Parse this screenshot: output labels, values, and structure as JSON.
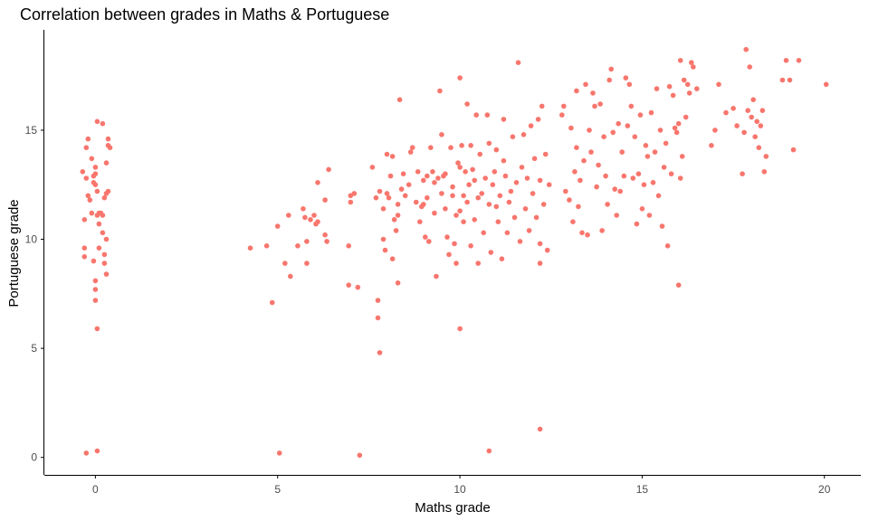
{
  "chart_data": {
    "type": "scatter",
    "title": "Correlation between grades in Maths & Portuguese",
    "xlabel": "Maths grade",
    "ylabel": "Portuguese grade",
    "xlim": [
      -1.4,
      21.0
    ],
    "ylim": [
      -0.8,
      19.6
    ],
    "xticks": [
      0,
      5,
      10,
      15,
      20
    ],
    "yticks": [
      0,
      5,
      10,
      15
    ],
    "grid": false,
    "legend": "none",
    "point_color": "#f8766d",
    "points": [
      [
        -0.3,
        9.2
      ],
      [
        -0.3,
        9.6
      ],
      [
        -0.3,
        10.9
      ],
      [
        -0.35,
        13.1
      ],
      [
        -0.25,
        12.8
      ],
      [
        -0.2,
        12.0
      ],
      [
        -0.25,
        14.2
      ],
      [
        -0.2,
        14.6
      ],
      [
        -0.15,
        11.8
      ],
      [
        -0.1,
        13.7
      ],
      [
        -0.05,
        12.6
      ],
      [
        -0.05,
        12.9
      ],
      [
        0.0,
        13.0
      ],
      [
        0.0,
        13.3
      ],
      [
        0.05,
        12.2
      ],
      [
        0.0,
        12.5
      ],
      [
        -0.1,
        11.2
      ],
      [
        -0.05,
        9.0
      ],
      [
        0.1,
        9.6
      ],
      [
        0.0,
        8.1
      ],
      [
        0.0,
        7.7
      ],
      [
        0.0,
        7.2
      ],
      [
        0.05,
        5.9
      ],
      [
        0.05,
        11.1
      ],
      [
        0.1,
        11.2
      ],
      [
        0.15,
        11.2
      ],
      [
        0.1,
        10.7
      ],
      [
        0.2,
        10.3
      ],
      [
        0.2,
        11.1
      ],
      [
        0.25,
        11.9
      ],
      [
        0.3,
        12.1
      ],
      [
        0.35,
        12.2
      ],
      [
        0.3,
        13.5
      ],
      [
        0.35,
        14.3
      ],
      [
        0.4,
        14.2
      ],
      [
        0.35,
        14.6
      ],
      [
        0.3,
        10.0
      ],
      [
        0.25,
        9.3
      ],
      [
        0.3,
        8.4
      ],
      [
        0.25,
        8.9
      ],
      [
        0.05,
        15.4
      ],
      [
        0.2,
        15.3
      ],
      [
        -0.25,
        0.2
      ],
      [
        0.05,
        0.3
      ],
      [
        4.25,
        9.6
      ],
      [
        4.7,
        9.7
      ],
      [
        4.85,
        7.1
      ],
      [
        5.0,
        10.6
      ],
      [
        5.2,
        8.9
      ],
      [
        5.35,
        8.3
      ],
      [
        5.3,
        11.1
      ],
      [
        5.55,
        9.7
      ],
      [
        5.7,
        11.4
      ],
      [
        5.75,
        11.0
      ],
      [
        5.8,
        9.9
      ],
      [
        5.8,
        8.9
      ],
      [
        5.9,
        10.9
      ],
      [
        6.0,
        11.1
      ],
      [
        6.05,
        10.7
      ],
      [
        6.1,
        10.8
      ],
      [
        6.1,
        12.6
      ],
      [
        6.3,
        10.2
      ],
      [
        6.3,
        11.8
      ],
      [
        6.35,
        9.9
      ],
      [
        6.4,
        13.2
      ],
      [
        5.05,
        0.2
      ],
      [
        6.95,
        9.7
      ],
      [
        6.95,
        7.9
      ],
      [
        7.0,
        11.7
      ],
      [
        7.0,
        12.0
      ],
      [
        7.1,
        12.1
      ],
      [
        7.2,
        7.8
      ],
      [
        7.25,
        0.1
      ],
      [
        7.6,
        13.3
      ],
      [
        7.7,
        11.9
      ],
      [
        7.75,
        7.2
      ],
      [
        7.75,
        6.4
      ],
      [
        7.8,
        4.8
      ],
      [
        7.8,
        12.2
      ],
      [
        7.9,
        10.0
      ],
      [
        7.9,
        11.4
      ],
      [
        7.95,
        9.5
      ],
      [
        8.0,
        12.1
      ],
      [
        8.0,
        13.9
      ],
      [
        8.05,
        11.9
      ],
      [
        8.1,
        12.9
      ],
      [
        8.15,
        13.8
      ],
      [
        8.15,
        9.1
      ],
      [
        8.2,
        10.9
      ],
      [
        8.25,
        10.4
      ],
      [
        8.3,
        8.0
      ],
      [
        8.3,
        11.1
      ],
      [
        8.3,
        11.6
      ],
      [
        8.35,
        16.4
      ],
      [
        8.4,
        12.3
      ],
      [
        8.45,
        13.0
      ],
      [
        8.5,
        12.0
      ],
      [
        8.6,
        12.5
      ],
      [
        8.65,
        14.0
      ],
      [
        8.7,
        14.2
      ],
      [
        8.8,
        11.7
      ],
      [
        8.85,
        13.1
      ],
      [
        8.9,
        10.8
      ],
      [
        8.95,
        11.5
      ],
      [
        9.0,
        11.6
      ],
      [
        9.0,
        12.7
      ],
      [
        9.05,
        10.1
      ],
      [
        9.1,
        11.9
      ],
      [
        9.1,
        12.9
      ],
      [
        9.15,
        9.9
      ],
      [
        9.2,
        14.2
      ],
      [
        9.25,
        13.1
      ],
      [
        9.3,
        12.6
      ],
      [
        9.3,
        11.2
      ],
      [
        9.35,
        8.3
      ],
      [
        9.4,
        12.8
      ],
      [
        9.45,
        16.8
      ],
      [
        9.5,
        14.8
      ],
      [
        9.5,
        12.1
      ],
      [
        9.55,
        12.9
      ],
      [
        9.6,
        13.0
      ],
      [
        9.6,
        11.4
      ],
      [
        9.65,
        10.1
      ],
      [
        9.7,
        9.3
      ],
      [
        9.75,
        14.2
      ],
      [
        9.8,
        12.0
      ],
      [
        9.8,
        12.4
      ],
      [
        9.85,
        9.8
      ],
      [
        9.9,
        11.1
      ],
      [
        9.9,
        8.9
      ],
      [
        9.95,
        13.5
      ],
      [
        10.0,
        13.3
      ],
      [
        10.0,
        11.3
      ],
      [
        10.0,
        5.9
      ],
      [
        10.0,
        17.4
      ],
      [
        10.05,
        14.3
      ],
      [
        10.1,
        12.0
      ],
      [
        10.1,
        10.8
      ],
      [
        10.15,
        13.1
      ],
      [
        10.2,
        11.7
      ],
      [
        10.2,
        16.2
      ],
      [
        10.25,
        12.5
      ],
      [
        10.3,
        9.7
      ],
      [
        10.3,
        14.3
      ],
      [
        10.35,
        13.2
      ],
      [
        10.4,
        12.7
      ],
      [
        10.4,
        10.9
      ],
      [
        10.45,
        15.7
      ],
      [
        10.5,
        11.9
      ],
      [
        10.5,
        8.9
      ],
      [
        10.55,
        13.9
      ],
      [
        10.6,
        12.1
      ],
      [
        10.65,
        10.3
      ],
      [
        10.7,
        12.8
      ],
      [
        10.75,
        15.7
      ],
      [
        10.8,
        11.6
      ],
      [
        10.8,
        14.4
      ],
      [
        10.85,
        9.4
      ],
      [
        10.9,
        12.5
      ],
      [
        10.95,
        13.1
      ],
      [
        11.0,
        11.5
      ],
      [
        11.0,
        14.1
      ],
      [
        11.05,
        10.8
      ],
      [
        11.1,
        12.0
      ],
      [
        11.15,
        9.1
      ],
      [
        11.2,
        13.6
      ],
      [
        11.2,
        15.5
      ],
      [
        11.25,
        12.9
      ],
      [
        11.3,
        10.3
      ],
      [
        11.35,
        11.7
      ],
      [
        11.4,
        12.2
      ],
      [
        11.45,
        14.7
      ],
      [
        11.5,
        11.0
      ],
      [
        11.55,
        12.6
      ],
      [
        11.6,
        18.1
      ],
      [
        11.65,
        9.9
      ],
      [
        11.7,
        13.3
      ],
      [
        11.75,
        14.8
      ],
      [
        11.8,
        11.4
      ],
      [
        11.85,
        12.8
      ],
      [
        11.9,
        10.4
      ],
      [
        11.95,
        15.2
      ],
      [
        12.0,
        12.1
      ],
      [
        12.05,
        13.7
      ],
      [
        12.1,
        11.0
      ],
      [
        12.15,
        15.5
      ],
      [
        12.2,
        9.8
      ],
      [
        12.2,
        12.7
      ],
      [
        12.25,
        16.1
      ],
      [
        12.3,
        11.6
      ],
      [
        12.35,
        13.9
      ],
      [
        12.4,
        9.5
      ],
      [
        12.45,
        12.5
      ],
      [
        12.2,
        1.3
      ],
      [
        12.2,
        8.9
      ],
      [
        10.8,
        0.3
      ],
      [
        12.8,
        15.7
      ],
      [
        12.85,
        16.1
      ],
      [
        12.9,
        12.2
      ],
      [
        13.0,
        11.8
      ],
      [
        13.05,
        15.1
      ],
      [
        13.1,
        10.8
      ],
      [
        13.15,
        13.1
      ],
      [
        13.2,
        14.2
      ],
      [
        13.2,
        16.8
      ],
      [
        13.25,
        11.5
      ],
      [
        13.3,
        12.7
      ],
      [
        13.35,
        10.3
      ],
      [
        13.4,
        13.6
      ],
      [
        13.45,
        17.1
      ],
      [
        13.5,
        10.2
      ],
      [
        13.55,
        15.0
      ],
      [
        13.6,
        14.0
      ],
      [
        13.65,
        16.7
      ],
      [
        13.7,
        16.1
      ],
      [
        13.75,
        12.4
      ],
      [
        13.8,
        13.4
      ],
      [
        13.85,
        16.2
      ],
      [
        13.9,
        10.4
      ],
      [
        13.95,
        14.7
      ],
      [
        14.0,
        12.9
      ],
      [
        14.05,
        11.6
      ],
      [
        14.1,
        17.3
      ],
      [
        14.15,
        17.8
      ],
      [
        14.2,
        14.9
      ],
      [
        14.25,
        12.3
      ],
      [
        14.3,
        11.1
      ],
      [
        14.35,
        15.3
      ],
      [
        14.4,
        12.2
      ],
      [
        14.45,
        14.0
      ],
      [
        14.5,
        12.9
      ],
      [
        14.55,
        17.4
      ],
      [
        14.6,
        15.2
      ],
      [
        14.65,
        17.1
      ],
      [
        14.7,
        16.1
      ],
      [
        14.75,
        12.8
      ],
      [
        14.8,
        14.7
      ],
      [
        14.85,
        10.7
      ],
      [
        14.9,
        13.0
      ],
      [
        14.95,
        15.7
      ],
      [
        15.0,
        11.4
      ],
      [
        15.05,
        12.5
      ],
      [
        15.1,
        14.3
      ],
      [
        15.15,
        13.8
      ],
      [
        15.2,
        11.1
      ],
      [
        15.25,
        15.8
      ],
      [
        15.3,
        12.6
      ],
      [
        15.35,
        14.0
      ],
      [
        15.4,
        16.9
      ],
      [
        15.45,
        12.0
      ],
      [
        15.5,
        15.0
      ],
      [
        15.55,
        10.6
      ],
      [
        15.6,
        13.3
      ],
      [
        15.65,
        14.4
      ],
      [
        15.7,
        9.7
      ],
      [
        15.75,
        17.0
      ],
      [
        15.8,
        13.0
      ],
      [
        15.85,
        16.6
      ],
      [
        15.9,
        15.1
      ],
      [
        15.95,
        14.9
      ],
      [
        16.0,
        15.3
      ],
      [
        16.05,
        12.8
      ],
      [
        16.05,
        18.2
      ],
      [
        16.1,
        13.8
      ],
      [
        16.15,
        17.3
      ],
      [
        16.2,
        15.6
      ],
      [
        16.25,
        17.1
      ],
      [
        16.3,
        16.7
      ],
      [
        16.35,
        18.1
      ],
      [
        16.4,
        17.9
      ],
      [
        16.0,
        7.9
      ],
      [
        16.5,
        16.9
      ],
      [
        16.9,
        14.3
      ],
      [
        17.0,
        15.0
      ],
      [
        17.1,
        17.1
      ],
      [
        17.3,
        15.8
      ],
      [
        17.5,
        16.0
      ],
      [
        17.6,
        15.2
      ],
      [
        17.75,
        13.0
      ],
      [
        17.8,
        14.9
      ],
      [
        17.85,
        18.7
      ],
      [
        17.9,
        15.9
      ],
      [
        17.95,
        17.9
      ],
      [
        18.0,
        15.6
      ],
      [
        18.05,
        16.4
      ],
      [
        18.1,
        14.7
      ],
      [
        18.15,
        15.4
      ],
      [
        18.2,
        14.2
      ],
      [
        18.25,
        15.2
      ],
      [
        18.3,
        15.9
      ],
      [
        18.35,
        13.1
      ],
      [
        18.4,
        13.8
      ],
      [
        18.85,
        17.3
      ],
      [
        18.95,
        18.2
      ],
      [
        19.05,
        17.3
      ],
      [
        19.15,
        14.1
      ],
      [
        19.3,
        18.2
      ],
      [
        20.05,
        17.1
      ]
    ]
  }
}
